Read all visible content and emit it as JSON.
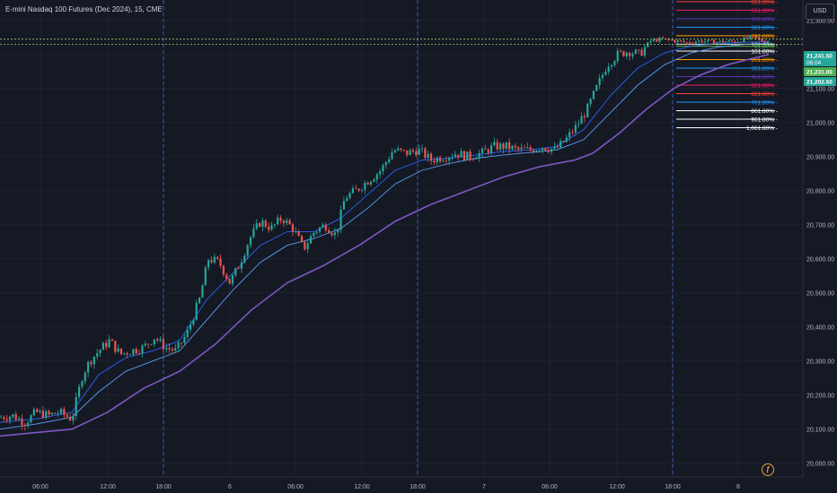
{
  "header": {
    "title": "E-mini Nasdaq 100 Futures (Dec 2024), 15, CME",
    "currency": "USD"
  },
  "colors": {
    "background": "#151924",
    "grid": "#1f2330",
    "candle_up": "#26a69a",
    "candle_down": "#ef5350",
    "ma_fast": "#2962ff",
    "ma_mid": "#5b9cf6",
    "ma_slow": "#7e57c2",
    "session_divider": "#3b5bb8",
    "price_line": "#9ccc65",
    "fib_161": "#ffffff",
    "fib_261": "#ff9800",
    "fib_361": "#2196f3",
    "fib_461": "#5e35b1",
    "fib_561": "#e91e63",
    "fib_661": "#f44336"
  },
  "chart_data": {
    "type": "candlestick",
    "x_ticks": [
      "06:00",
      "12:00",
      "18:00",
      "6",
      "06:00",
      "12:00",
      "18:00",
      "7",
      "06:00",
      "12:00",
      "18:00",
      "8"
    ],
    "ylim": [
      19960,
      21360
    ],
    "y_ticks": [
      "21,300.00",
      "21,200.00",
      "21,100.00",
      "21,000.00",
      "20,900.00",
      "20,800.00",
      "20,700.00",
      "20,600.00",
      "20,500.00",
      "20,400.00",
      "20,300.00",
      "20,200.00",
      "20,100.00",
      "20,000.00"
    ],
    "y_tick_values": [
      21300,
      21200,
      21100,
      21000,
      20900,
      20800,
      20700,
      20600,
      20500,
      20400,
      20300,
      20200,
      20100,
      20000
    ],
    "price_badges": [
      {
        "label": "21,241.50",
        "sub": "06:04",
        "value": 21241.5,
        "color": "#26a69a"
      },
      {
        "label": "21,231.00",
        "value": 21231,
        "color": "#4caf50"
      },
      {
        "label": "21,202.50",
        "value": 21202.5,
        "color": "#26a69a"
      }
    ],
    "price_lines": [
      21245,
      21230
    ],
    "fib_levels": [
      {
        "label": "661.80%",
        "value": 21355,
        "color": "#f44336",
        "side": "up"
      },
      {
        "label": "561.80%",
        "value": 21330,
        "color": "#e91e63",
        "side": "up"
      },
      {
        "label": "461.80%",
        "value": 21305,
        "color": "#5e35b1",
        "side": "up"
      },
      {
        "label": "361.80%",
        "value": 21280,
        "color": "#2196f3",
        "side": "up"
      },
      {
        "label": "261.80%",
        "value": 21255,
        "color": "#ff9800",
        "side": "up"
      },
      {
        "label": "161.80%",
        "value": 21230,
        "color": "#ffffff",
        "side": "up"
      },
      {
        "label": "61.80%",
        "value": 21224,
        "color": "#4caf50",
        "side": "up"
      },
      {
        "label": "161.80%",
        "value": 21210,
        "color": "#ffffff",
        "side": "down"
      },
      {
        "label": "261.80%",
        "value": 21185,
        "color": "#ff9800",
        "side": "down"
      },
      {
        "label": "361.80%",
        "value": 21160,
        "color": "#2196f3",
        "side": "down"
      },
      {
        "label": "461.80%",
        "value": 21135,
        "color": "#5e35b1",
        "side": "down"
      },
      {
        "label": "561.80%",
        "value": 21110,
        "color": "#e91e63",
        "side": "down"
      },
      {
        "label": "661.80%",
        "value": 21085,
        "color": "#f44336",
        "side": "down"
      },
      {
        "label": "761.80%",
        "value": 21060,
        "color": "#2196f3",
        "side": "down"
      },
      {
        "label": "861.80%",
        "value": 21035,
        "color": "#ffffff",
        "side": "down"
      },
      {
        "label": "961.80%",
        "value": 21010,
        "color": "#ffffff",
        "side": "down"
      },
      {
        "label": "1,061.80%",
        "value": 20985,
        "color": "#ffffff",
        "side": "down"
      }
    ],
    "price_path": [
      [
        0,
        20135
      ],
      [
        14,
        20140
      ],
      [
        28,
        20120
      ],
      [
        40,
        20150
      ],
      [
        54,
        20140
      ],
      [
        66,
        20150
      ],
      [
        80,
        20130
      ],
      [
        92,
        20260
      ],
      [
        100,
        20300
      ],
      [
        110,
        20330
      ],
      [
        122,
        20360
      ],
      [
        134,
        20320
      ],
      [
        146,
        20330
      ],
      [
        160,
        20340
      ],
      [
        172,
        20370
      ],
      [
        184,
        20340
      ],
      [
        196,
        20330
      ],
      [
        208,
        20380
      ],
      [
        222,
        20480
      ],
      [
        232,
        20600
      ],
      [
        244,
        20590
      ],
      [
        256,
        20530
      ],
      [
        266,
        20580
      ],
      [
        278,
        20660
      ],
      [
        290,
        20710
      ],
      [
        302,
        20690
      ],
      [
        314,
        20720
      ],
      [
        326,
        20690
      ],
      [
        338,
        20630
      ],
      [
        350,
        20680
      ],
      [
        362,
        20700
      ],
      [
        374,
        20670
      ],
      [
        384,
        20780
      ],
      [
        396,
        20800
      ],
      [
        410,
        20830
      ],
      [
        424,
        20860
      ],
      [
        438,
        20920
      ],
      [
        452,
        20910
      ],
      [
        466,
        20920
      ],
      [
        480,
        20890
      ],
      [
        494,
        20900
      ],
      [
        508,
        20910
      ],
      [
        522,
        20900
      ],
      [
        536,
        20910
      ],
      [
        550,
        20930
      ],
      [
        564,
        20930
      ],
      [
        576,
        20920
      ],
      [
        590,
        20920
      ],
      [
        604,
        20930
      ],
      [
        618,
        20920
      ],
      [
        630,
        20950
      ],
      [
        642,
        20990
      ],
      [
        654,
        21040
      ],
      [
        664,
        21100
      ],
      [
        676,
        21170
      ],
      [
        688,
        21200
      ],
      [
        700,
        21210
      ],
      [
        712,
        21200
      ],
      [
        724,
        21240
      ],
      [
        738,
        21245
      ],
      [
        752,
        21240
      ],
      [
        766,
        21235
      ],
      [
        780,
        21240
      ],
      [
        794,
        21236
      ],
      [
        808,
        21238
      ],
      [
        822,
        21240
      ],
      [
        836,
        21250
      ],
      [
        850,
        21240
      ],
      [
        856,
        21242
      ]
    ],
    "ma_fast": [
      [
        0,
        20120
      ],
      [
        40,
        20130
      ],
      [
        80,
        20150
      ],
      [
        110,
        20260
      ],
      [
        140,
        20310
      ],
      [
        170,
        20330
      ],
      [
        200,
        20360
      ],
      [
        230,
        20480
      ],
      [
        260,
        20560
      ],
      [
        290,
        20640
      ],
      [
        320,
        20680
      ],
      [
        350,
        20680
      ],
      [
        380,
        20720
      ],
      [
        410,
        20790
      ],
      [
        440,
        20860
      ],
      [
        470,
        20890
      ],
      [
        500,
        20895
      ],
      [
        530,
        20905
      ],
      [
        560,
        20915
      ],
      [
        590,
        20920
      ],
      [
        620,
        20930
      ],
      [
        650,
        20980
      ],
      [
        680,
        21080
      ],
      [
        710,
        21160
      ],
      [
        740,
        21205
      ],
      [
        770,
        21225
      ],
      [
        800,
        21232
      ],
      [
        830,
        21236
      ],
      [
        856,
        21238
      ]
    ],
    "ma_mid": [
      [
        0,
        20100
      ],
      [
        40,
        20115
      ],
      [
        80,
        20135
      ],
      [
        110,
        20210
      ],
      [
        140,
        20270
      ],
      [
        170,
        20300
      ],
      [
        200,
        20330
      ],
      [
        230,
        20420
      ],
      [
        260,
        20510
      ],
      [
        290,
        20590
      ],
      [
        320,
        20640
      ],
      [
        350,
        20660
      ],
      [
        380,
        20690
      ],
      [
        410,
        20750
      ],
      [
        440,
        20820
      ],
      [
        470,
        20860
      ],
      [
        500,
        20880
      ],
      [
        530,
        20895
      ],
      [
        560,
        20905
      ],
      [
        590,
        20912
      ],
      [
        620,
        20920
      ],
      [
        650,
        20950
      ],
      [
        680,
        21030
      ],
      [
        710,
        21110
      ],
      [
        740,
        21170
      ],
      [
        770,
        21205
      ],
      [
        800,
        21222
      ],
      [
        830,
        21230
      ],
      [
        856,
        21233
      ]
    ],
    "ma_slow": [
      [
        0,
        20080
      ],
      [
        40,
        20090
      ],
      [
        80,
        20100
      ],
      [
        120,
        20150
      ],
      [
        160,
        20220
      ],
      [
        200,
        20270
      ],
      [
        240,
        20350
      ],
      [
        280,
        20450
      ],
      [
        320,
        20530
      ],
      [
        360,
        20580
      ],
      [
        400,
        20640
      ],
      [
        440,
        20710
      ],
      [
        480,
        20760
      ],
      [
        520,
        20800
      ],
      [
        560,
        20840
      ],
      [
        600,
        20870
      ],
      [
        640,
        20890
      ],
      [
        660,
        20910
      ],
      [
        690,
        20970
      ],
      [
        720,
        21040
      ],
      [
        750,
        21100
      ],
      [
        780,
        21140
      ],
      [
        810,
        21170
      ],
      [
        840,
        21190
      ],
      [
        856,
        21200
      ]
    ]
  }
}
